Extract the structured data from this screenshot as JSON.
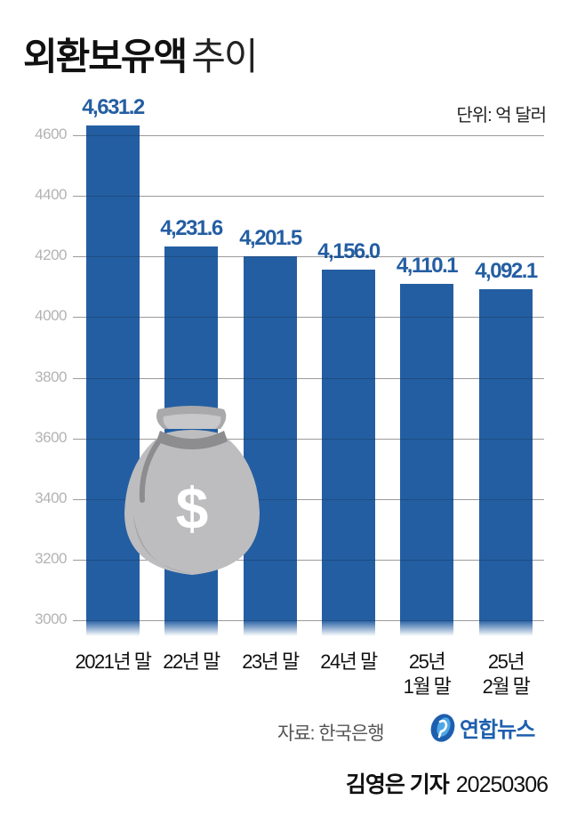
{
  "header": {
    "title_bold": "외환보유액",
    "title_light": "추이",
    "unit": "단위: 억 달러"
  },
  "colors": {
    "bar": "#245ea2",
    "value_label": "#245ea2",
    "axis_tick": "#b3b3b3",
    "grid": "#bdbdbd"
  },
  "chart_data": {
    "type": "bar",
    "title": "외환보유액 추이",
    "unit": "억 달러",
    "xlabel": "",
    "ylabel": "",
    "categories": [
      "2021년 말",
      "22년 말",
      "23년 말",
      "24년 말",
      "25년 1월 말",
      "25년 2월 말"
    ],
    "values": [
      4631.2,
      4231.6,
      4201.5,
      4156.0,
      4110.1,
      4092.1
    ],
    "value_labels": [
      "4,631.2",
      "4,231.6",
      "4,201.5",
      "4,156.0",
      "4,110.1",
      "4,092.1"
    ],
    "ylim": [
      3000,
      4600
    ],
    "yticks": [
      4600,
      4400,
      4200,
      4000,
      3800,
      3600,
      3400,
      3200,
      3000
    ],
    "grid": true,
    "legend": null
  },
  "xaxis": {
    "labels": [
      {
        "line1": "2021년 말",
        "line2": ""
      },
      {
        "line1": "22년 말",
        "line2": ""
      },
      {
        "line1": "23년 말",
        "line2": ""
      },
      {
        "line1": "24년 말",
        "line2": ""
      },
      {
        "line1": "25년",
        "line2": "1월 말"
      },
      {
        "line1": "25년",
        "line2": "2월 말"
      }
    ]
  },
  "illustration": {
    "icon": "money-bag-icon",
    "symbol": "$"
  },
  "footer": {
    "source": "자료: 한국은행",
    "logo_text": "연합뉴스",
    "reporter": "김영은 기자",
    "date": "20250306"
  }
}
